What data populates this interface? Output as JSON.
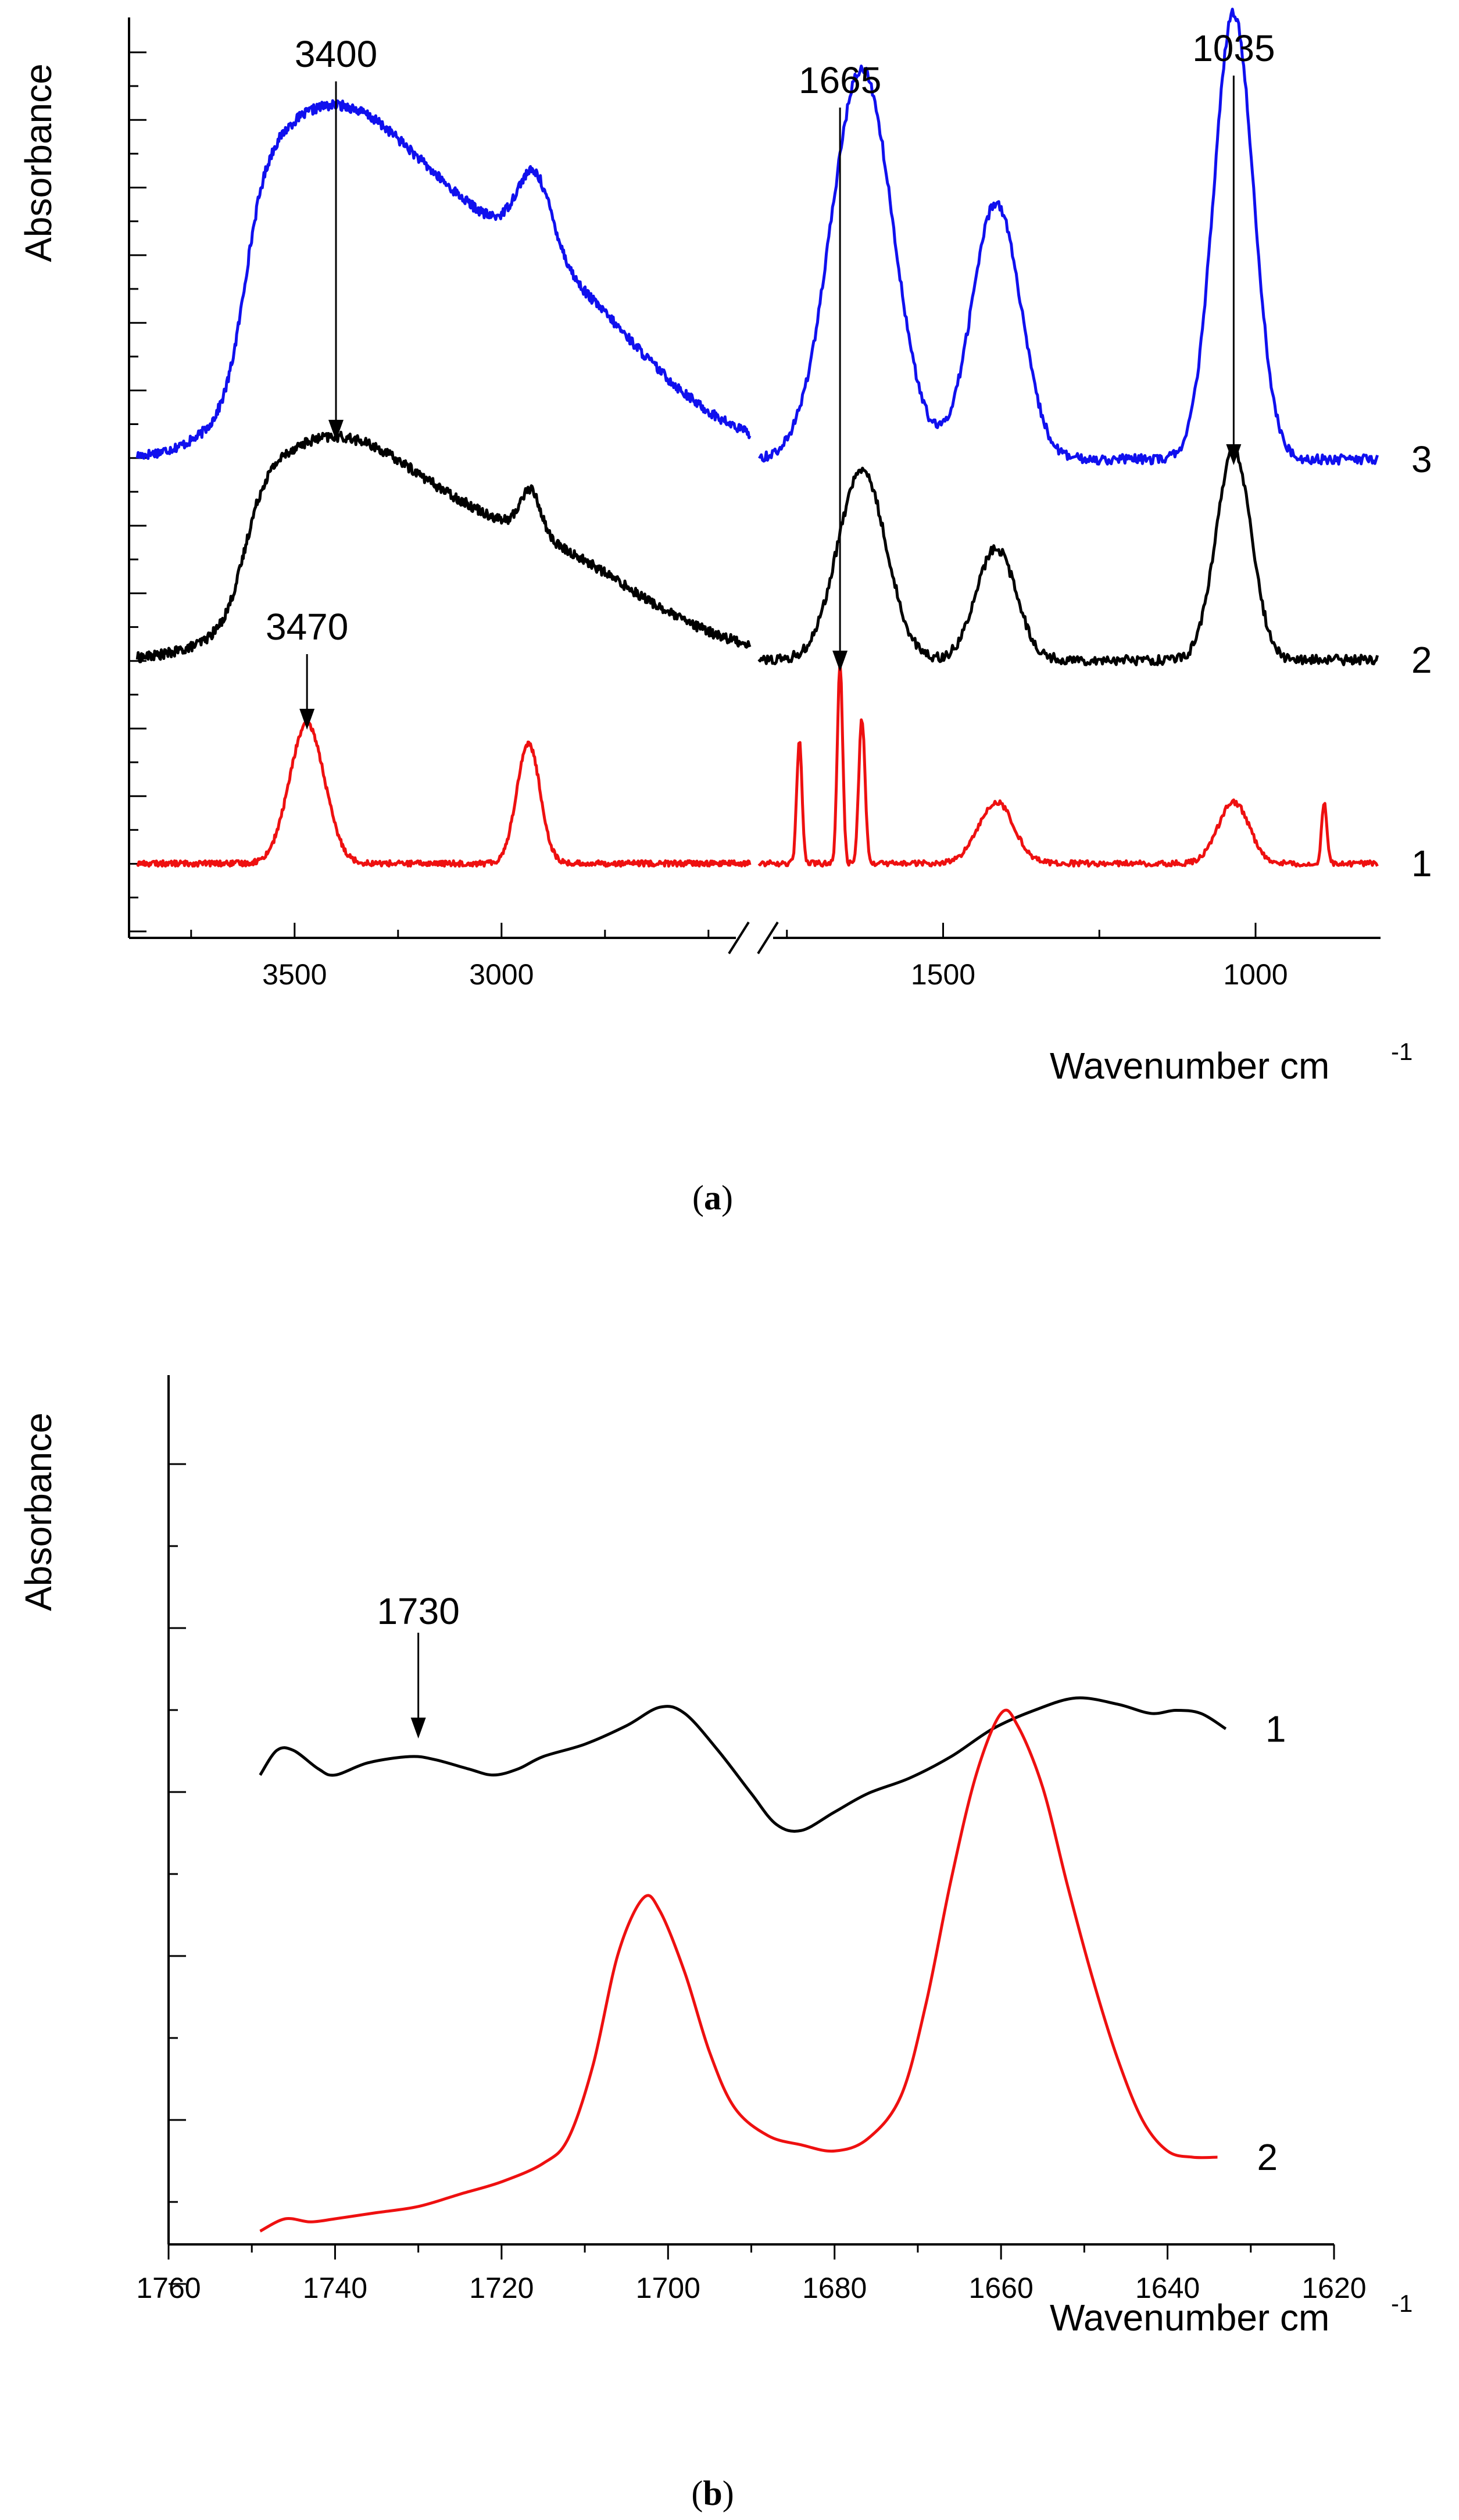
{
  "chart_data": [
    {
      "panel": "a",
      "type": "line",
      "ylabel": "Absorbance",
      "xlabel": "Wavenumber cm",
      "xlabel_superscript": "-1",
      "caption": "a",
      "x_axis": "reversed, broken between 2400 and 1800",
      "x_segments": [
        {
          "range": [
            3900,
            2400
          ],
          "ticks": [
            "3500",
            "3000"
          ],
          "tick_values": [
            3500,
            3000
          ]
        },
        {
          "range": [
            1800,
            800
          ],
          "ticks": [
            "1500",
            "1000"
          ],
          "tick_values": [
            1500,
            1000
          ]
        }
      ],
      "y_ticks": "unlabeled",
      "series": [
        {
          "name": "3",
          "label": "3",
          "color": "#1010ee",
          "baseline": 0.0,
          "plateau": 0.64,
          "peaks": [
            [
              3400,
              1.1
            ],
            [
              2920,
              0.8
            ],
            [
              1630,
              1.4
            ],
            [
              1415,
              0.92
            ],
            [
              1035,
              1.6
            ]
          ]
        },
        {
          "name": "2",
          "label": "2",
          "color": "#000000",
          "baseline": 0.0,
          "plateau": 0.28,
          "peaks": [
            [
              3400,
              0.78
            ],
            [
              2930,
              0.45
            ],
            [
              1630,
              0.68
            ],
            [
              1415,
              0.4
            ],
            [
              1035,
              0.75
            ]
          ]
        },
        {
          "name": "1",
          "label": "1",
          "color": "#ee1010",
          "baseline": 0.0,
          "plateau": 0.0,
          "peaks": [
            [
              3470,
              0.5
            ],
            [
              2935,
              0.43
            ],
            [
              1730,
              0.44
            ],
            [
              1665,
              0.72
            ],
            [
              1630,
              0.52
            ],
            [
              1415,
              0.22
            ],
            [
              1035,
              0.22
            ],
            [
              890,
              0.22
            ]
          ]
        }
      ],
      "annotations": [
        {
          "text": "3400",
          "x": 3400,
          "points_to": "2"
        },
        {
          "text": "3470",
          "x": 3470,
          "points_to": "1"
        },
        {
          "text": "1665",
          "x": 1665,
          "points_to": "1"
        },
        {
          "text": "1035",
          "x": 1035,
          "points_to": "2"
        }
      ]
    },
    {
      "panel": "b",
      "type": "line",
      "ylabel": "Absorbance",
      "xlabel": "Wavenumber cm",
      "xlabel_superscript": "-1",
      "caption": "b",
      "xlim": [
        1760,
        1620
      ],
      "xticks": [
        "1760",
        "1740",
        "1720",
        "1700",
        "1680",
        "1660",
        "1640",
        "1620"
      ],
      "xtick_values": [
        1760,
        1740,
        1720,
        1700,
        1680,
        1660,
        1640,
        1620
      ],
      "y_ticks": "unlabeled",
      "series": [
        {
          "name": "1",
          "label": "1",
          "color": "#000000",
          "x": [
            1749,
            1747,
            1745,
            1742,
            1740,
            1736,
            1731,
            1728,
            1724,
            1721,
            1718,
            1715,
            1710,
            1705,
            1701,
            1698,
            1694,
            1690,
            1687,
            1684,
            1680,
            1676,
            1671,
            1666,
            1661,
            1656,
            1651,
            1646,
            1642,
            1639,
            1636,
            1633
          ],
          "y": [
            0.62,
            0.66,
            0.66,
            0.63,
            0.62,
            0.64,
            0.65,
            0.645,
            0.63,
            0.62,
            0.63,
            0.65,
            0.67,
            0.7,
            0.73,
            0.72,
            0.66,
            0.59,
            0.54,
            0.53,
            0.56,
            0.59,
            0.615,
            0.65,
            0.695,
            0.725,
            0.745,
            0.735,
            0.72,
            0.725,
            0.72,
            0.695
          ]
        },
        {
          "name": "2",
          "label": "2",
          "color": "#ee1010",
          "x": [
            1749,
            1746,
            1743,
            1740,
            1735,
            1730,
            1725,
            1720,
            1715,
            1712,
            1709,
            1706,
            1703,
            1701,
            1698,
            1695,
            1692,
            1688,
            1684,
            1680,
            1676,
            1672,
            1669,
            1666,
            1663,
            1660,
            1658,
            1655,
            1652,
            1649,
            1646,
            1643,
            1640,
            1637,
            1634
          ],
          "y": [
            -0.12,
            -0.1,
            -0.105,
            -0.1,
            -0.09,
            -0.08,
            -0.06,
            -0.04,
            -0.01,
            0.03,
            0.15,
            0.33,
            0.42,
            0.4,
            0.3,
            0.17,
            0.08,
            0.035,
            0.02,
            0.01,
            0.03,
            0.1,
            0.25,
            0.45,
            0.62,
            0.72,
            0.7,
            0.6,
            0.44,
            0.29,
            0.16,
            0.06,
            0.01,
            0.0,
            0.0
          ]
        }
      ],
      "annotations": [
        {
          "text": "1730",
          "x": 1730,
          "points_to": "1"
        }
      ]
    }
  ]
}
